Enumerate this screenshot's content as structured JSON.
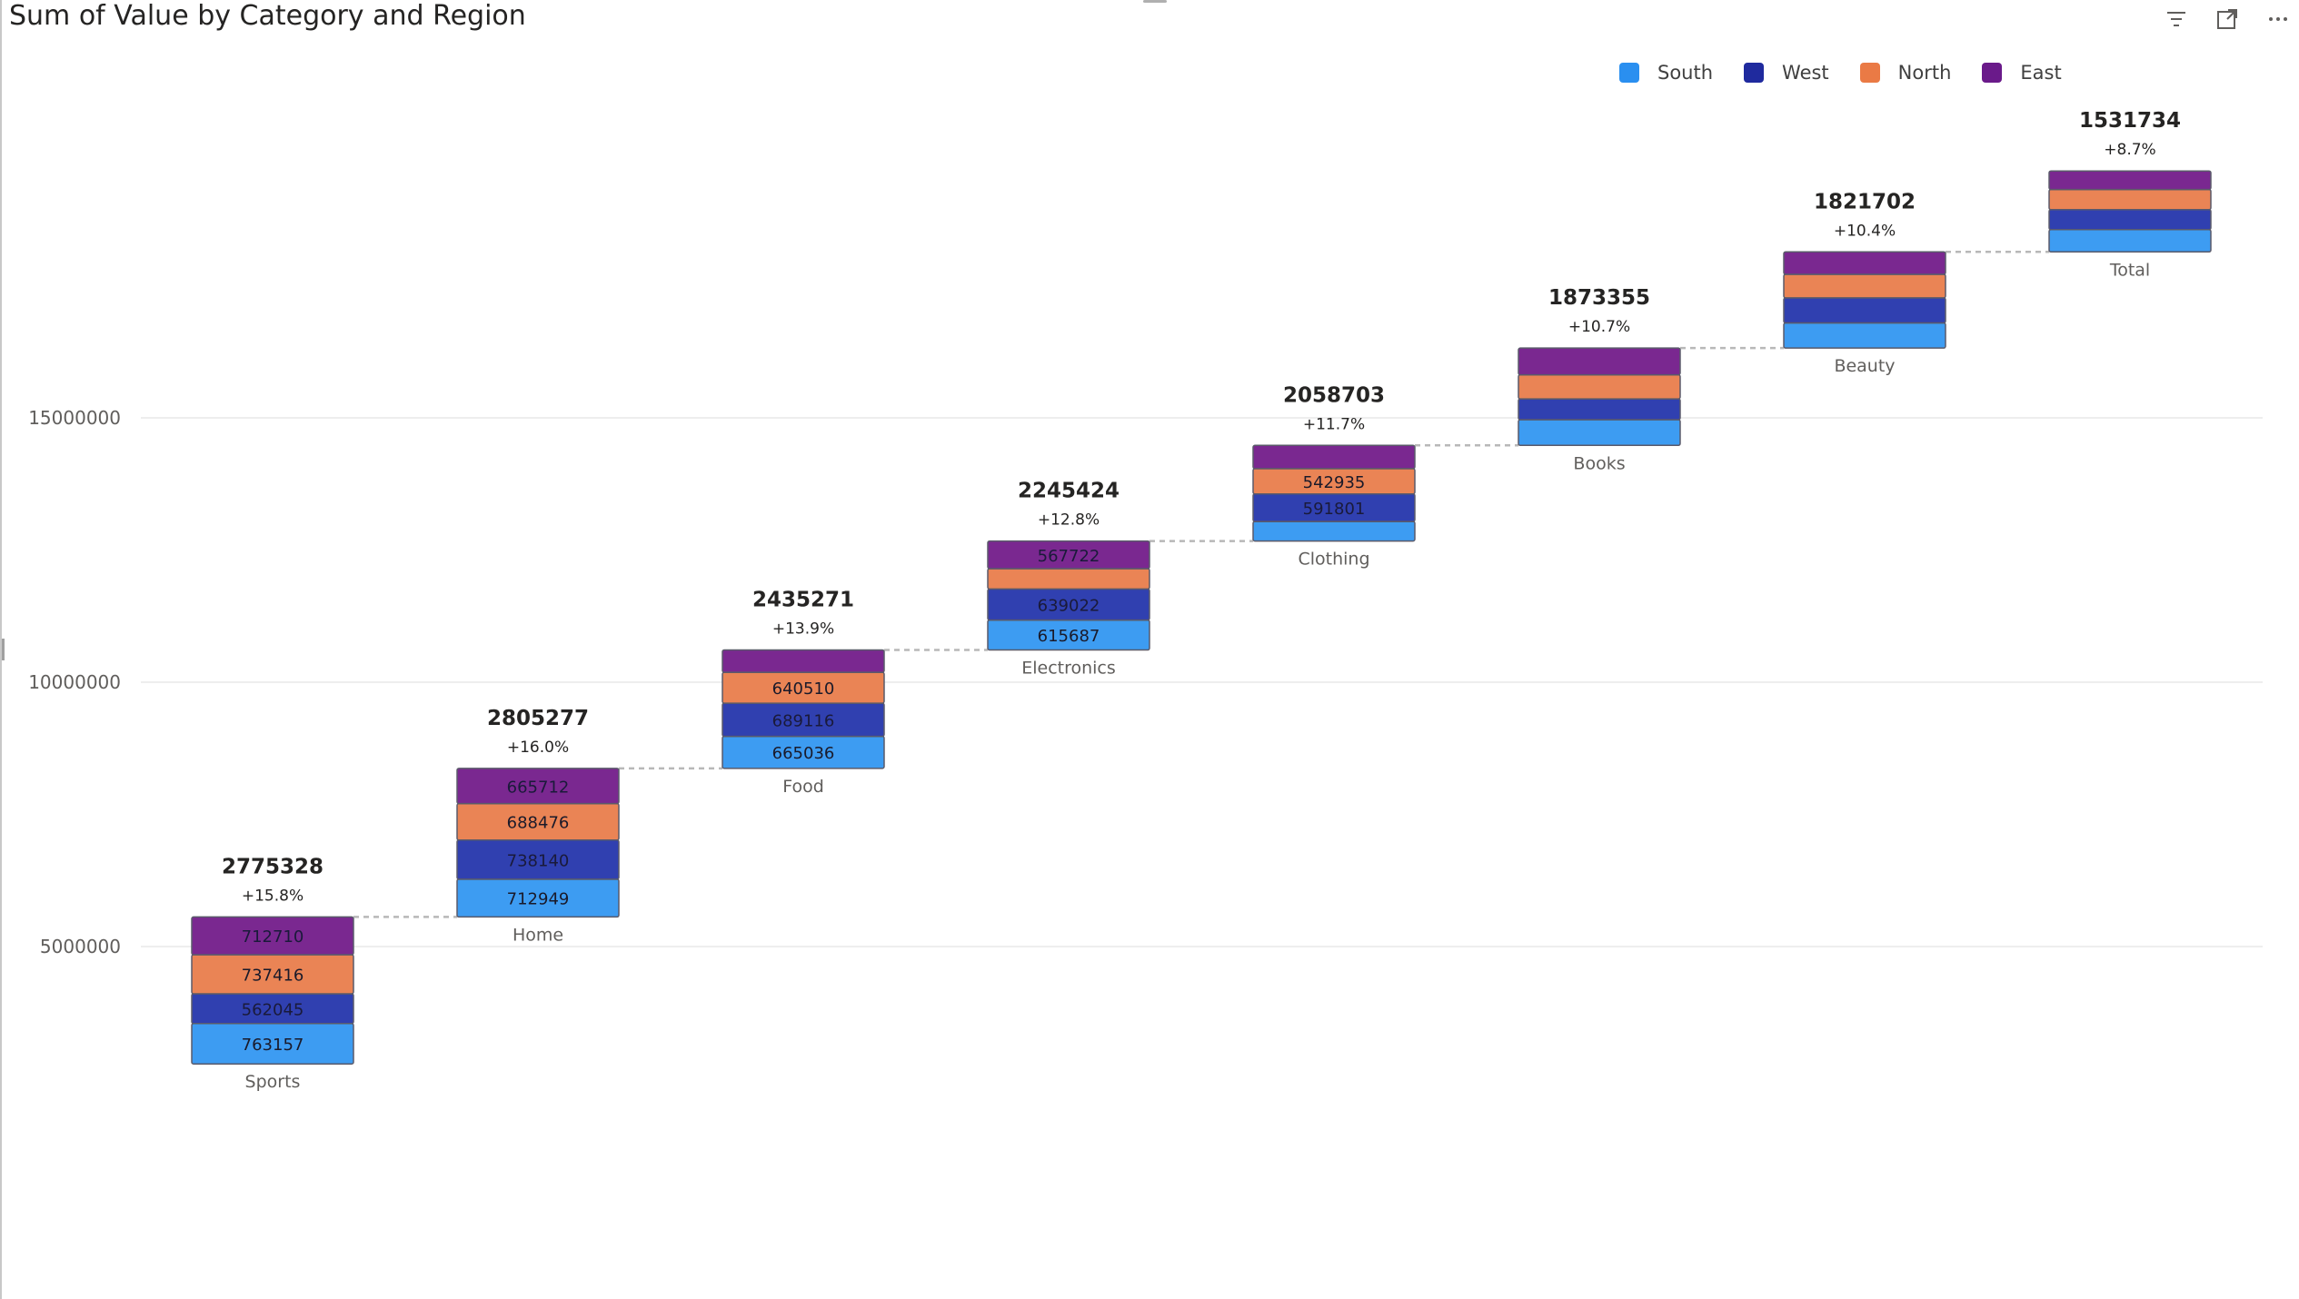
{
  "title": "Sum of Value by Category and Region",
  "header_icons": [
    "filter-icon",
    "focus-mode-icon",
    "more-options-icon"
  ],
  "legend": [
    {
      "name": "South",
      "color": "#2a8ff0"
    },
    {
      "name": "West",
      "color": "#1f2a9e"
    },
    {
      "name": "North",
      "color": "#ea7a45"
    },
    {
      "name": "East",
      "color": "#6a1a8a"
    }
  ],
  "chart_data": {
    "type": "bar",
    "subtype": "stacked-waterfall",
    "title": "Sum of Value by Category and Region",
    "xlabel": "",
    "ylabel": "",
    "ylim": [
      0,
      20000000
    ],
    "yticks": [
      5000000,
      10000000,
      15000000
    ],
    "ytick_labels": [
      "5000000",
      "10000000",
      "15000000"
    ],
    "grid": true,
    "legend_position": "top-right",
    "categories": [
      "Sports",
      "Home",
      "Food",
      "Electronics",
      "Clothing",
      "Books",
      "Beauty",
      "Total"
    ],
    "totals": [
      "2775328",
      "2805277",
      "2435271",
      "2245424",
      "2058703",
      "1873355",
      "1821702",
      "1531734"
    ],
    "percent_labels": [
      "+15.8%",
      "+16.0%",
      "+13.9%",
      "+12.8%",
      "+11.7%",
      "+10.7%",
      "+10.4%",
      "+8.7%"
    ],
    "bar_ranges": [
      [
        2780000,
        5560000
      ],
      [
        5560000,
        8370000
      ],
      [
        8370000,
        10610000
      ],
      [
        10610000,
        12670000
      ],
      [
        12670000,
        14480000
      ],
      [
        14480000,
        16320000
      ],
      [
        16320000,
        18140000
      ],
      [
        18140000,
        19670000
      ]
    ],
    "series": [
      {
        "name": "South",
        "color": "#3d9cf2",
        "values": [
          763157,
          712949,
          665036,
          615687,
          420000,
          480000,
          480000,
          420000
        ],
        "labels": [
          "763157",
          "712949",
          "665036",
          "615687",
          "",
          "",
          "",
          ""
        ]
      },
      {
        "name": "West",
        "color": "#3040b0",
        "values": [
          562045,
          738140,
          689116,
          639022,
          591801,
          390000,
          480000,
          380000
        ],
        "labels": [
          "562045",
          "738140",
          "689116",
          "639022",
          "591801",
          "",
          "",
          ""
        ]
      },
      {
        "name": "North",
        "color": "#ea8455",
        "values": [
          737416,
          688476,
          640510,
          420000,
          542935,
          450000,
          450000,
          380000
        ],
        "labels": [
          "737416",
          "688476",
          "640510",
          "",
          "542935",
          "",
          "",
          ""
        ]
      },
      {
        "name": "East",
        "color": "#7a2890",
        "values": [
          712710,
          665712,
          465000,
          567722,
          500000,
          500000,
          430000,
          350000
        ],
        "labels": [
          "712710",
          "665712",
          "",
          "567722",
          "",
          "",
          "",
          ""
        ]
      }
    ]
  }
}
